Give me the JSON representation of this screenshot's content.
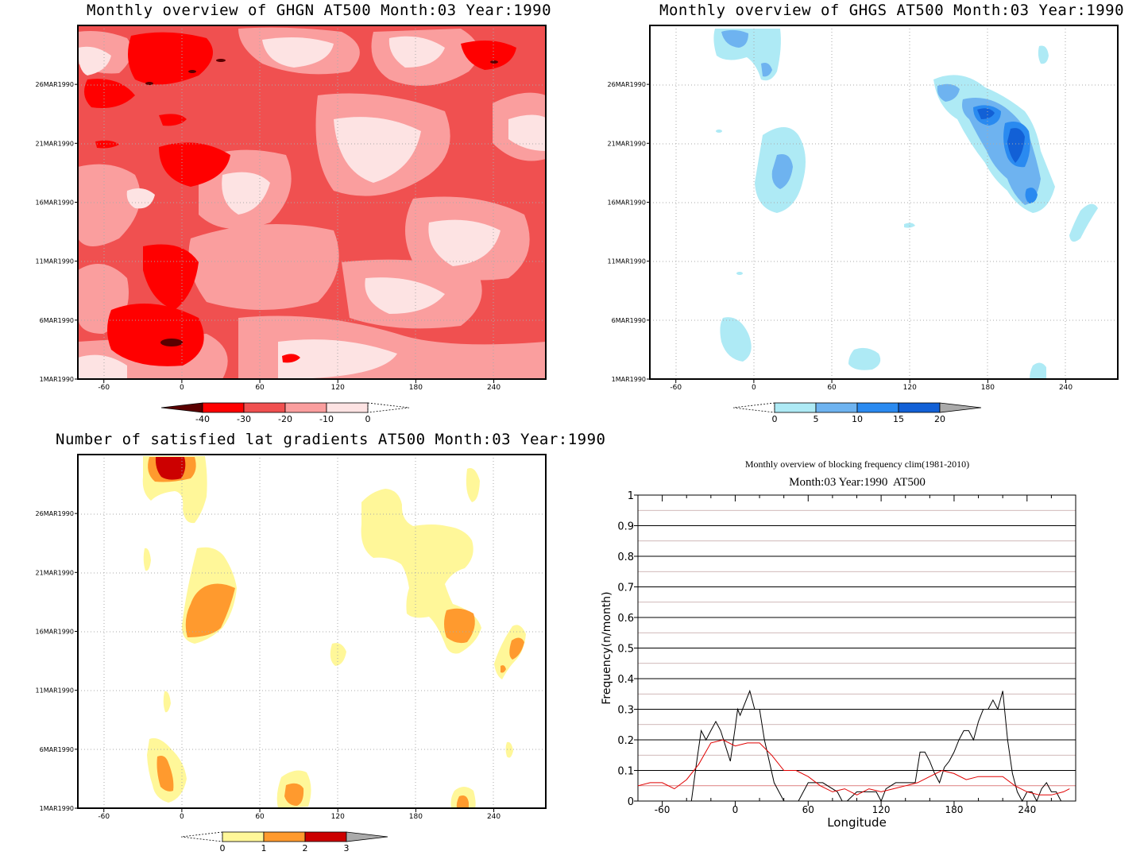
{
  "panels": {
    "p1": {
      "title": "Monthly overview of GHGN AT500 Month:03 Year:1990"
    },
    "p2": {
      "title": "Monthly overview of GHGS AT500 Month:03 Year:1990"
    },
    "p3": {
      "title": "Number of satisfied lat gradients AT500 Month:03 Year:1990"
    },
    "p4": {
      "title": "Monthly overview of blocking frequency clim(1981-2010)",
      "subtitle": "Month:03 Year:1990  AT500"
    }
  },
  "chart_data": [
    {
      "type": "heatmap",
      "title": "Monthly overview of GHGN AT500 Month:03 Year:1990",
      "x_ticks": [
        "-60",
        "0",
        "60",
        "120",
        "180",
        "240"
      ],
      "xlim": [
        -80,
        280
      ],
      "y_ticks": [
        "1MAR1990",
        "6MAR1990",
        "11MAR1990",
        "16MAR1990",
        "21MAR1990",
        "26MAR1990"
      ],
      "colorbar": {
        "labels": [
          "-40",
          "-30",
          "-20",
          "-10",
          "0"
        ],
        "colors": [
          "#5a0000",
          "#ff0000",
          "#f05050",
          "#fa9e9e",
          "#fde3e3",
          "#ffffff"
        ]
      }
    },
    {
      "type": "heatmap",
      "title": "Monthly overview of GHGS AT500 Month:03 Year:1990",
      "x_ticks": [
        "-60",
        "0",
        "60",
        "120",
        "180",
        "240"
      ],
      "xlim": [
        -80,
        280
      ],
      "y_ticks": [
        "1MAR1990",
        "6MAR1990",
        "11MAR1990",
        "16MAR1990",
        "21MAR1990",
        "26MAR1990"
      ],
      "colorbar": {
        "labels": [
          "0",
          "5",
          "10",
          "15",
          "20"
        ],
        "colors": [
          "#ffffff",
          "#aeeaf5",
          "#6eb3f0",
          "#2a8af0",
          "#1260d6",
          "#aaaaaa"
        ]
      }
    },
    {
      "type": "heatmap",
      "title": "Number of satisfied lat gradients AT500 Month:03 Year:1990",
      "x_ticks": [
        "-60",
        "0",
        "60",
        "120",
        "180",
        "240"
      ],
      "xlim": [
        -80,
        280
      ],
      "y_ticks": [
        "1MAR1990",
        "6MAR1990",
        "11MAR1990",
        "16MAR1990",
        "21MAR1990",
        "26MAR1990"
      ],
      "colorbar": {
        "labels": [
          "0",
          "1",
          "2",
          "3"
        ],
        "colors": [
          "#ffffff",
          "#fff799",
          "#ff9a2e",
          "#cc0000",
          "#aaaaaa"
        ]
      }
    },
    {
      "type": "line",
      "title": "Monthly overview of blocking frequency clim(1981-2010)",
      "subtitle": "Month:03 Year:1990  AT500",
      "xlabel": "Longitude",
      "ylabel": "Frequency(n/month)",
      "xlim": [
        -80,
        280
      ],
      "ylim": [
        0,
        1
      ],
      "x_ticks": [
        "-60",
        "0",
        "60",
        "120",
        "180",
        "240"
      ],
      "y_ticks": [
        "0",
        "0.1",
        "0.2",
        "0.3",
        "0.4",
        "0.5",
        "0.6",
        "0.7",
        "0.8",
        "0.9",
        "1"
      ],
      "grid": true,
      "series": [
        {
          "color": "#000000",
          "x": [
            -80,
            -36,
            -32,
            -28,
            -24,
            -20,
            -16,
            -12,
            -8,
            -4,
            0,
            2,
            4,
            8,
            12,
            16,
            20,
            24,
            28,
            32,
            36,
            40,
            44,
            52,
            60,
            72,
            84,
            88,
            92,
            100,
            104,
            116,
            120,
            124,
            132,
            140,
            148,
            152,
            156,
            160,
            164,
            168,
            172,
            176,
            180,
            184,
            188,
            192,
            196,
            200,
            204,
            208,
            212,
            216,
            220,
            224,
            228,
            232,
            236,
            240,
            244,
            248,
            252,
            256,
            260,
            264,
            268,
            272
          ],
          "y": [
            0,
            0,
            0.12,
            0.23,
            0.2,
            0.23,
            0.26,
            0.23,
            0.18,
            0.13,
            0.24,
            0.3,
            0.28,
            0.32,
            0.36,
            0.3,
            0.3,
            0.2,
            0.13,
            0.06,
            0.03,
            0,
            0,
            0,
            0.06,
            0.06,
            0.03,
            0,
            0,
            0.03,
            0.03,
            0.03,
            0,
            0.04,
            0.06,
            0.06,
            0.06,
            0.16,
            0.16,
            0.13,
            0.09,
            0.06,
            0.11,
            0.13,
            0.16,
            0.2,
            0.23,
            0.23,
            0.2,
            0.26,
            0.3,
            0.3,
            0.33,
            0.3,
            0.36,
            0.2,
            0.09,
            0.03,
            0,
            0.03,
            0.03,
            0,
            0.04,
            0.06,
            0.03,
            0.03,
            0,
            0
          ]
        },
        {
          "color": "#e00000",
          "x": [
            -80,
            -70,
            -60,
            -50,
            -40,
            -30,
            -20,
            -10,
            0,
            10,
            20,
            30,
            40,
            50,
            60,
            70,
            80,
            90,
            100,
            110,
            120,
            130,
            140,
            150,
            160,
            170,
            180,
            190,
            200,
            210,
            220,
            230,
            240,
            250,
            260,
            270,
            275
          ],
          "y": [
            0.05,
            0.06,
            0.06,
            0.04,
            0.07,
            0.12,
            0.19,
            0.2,
            0.18,
            0.19,
            0.19,
            0.15,
            0.1,
            0.1,
            0.08,
            0.05,
            0.03,
            0.04,
            0.02,
            0.04,
            0.03,
            0.04,
            0.05,
            0.06,
            0.08,
            0.1,
            0.09,
            0.07,
            0.08,
            0.08,
            0.08,
            0.05,
            0.03,
            0.02,
            0.02,
            0.03,
            0.04
          ]
        }
      ]
    }
  ]
}
